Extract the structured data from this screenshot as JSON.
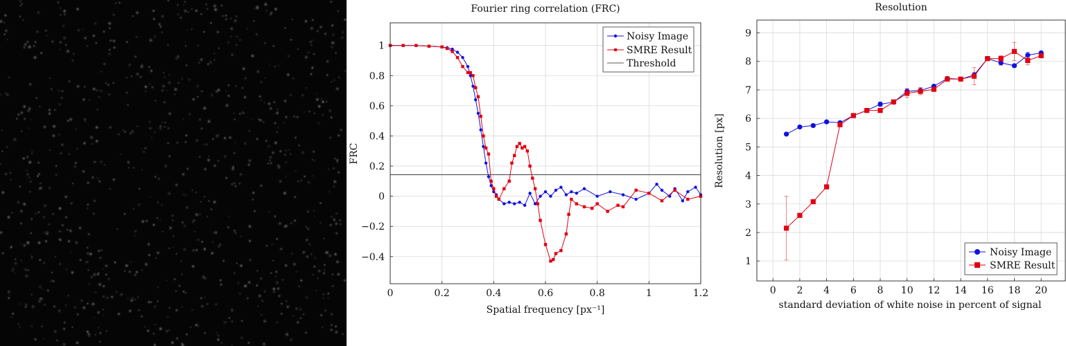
{
  "colors": {
    "blue": "#1010e0",
    "red": "#e00010",
    "threshold": "#222222",
    "grid": "#d9d9d9",
    "panel_bg": "#050505"
  },
  "chart_data": [
    {
      "type": "line",
      "title": "Fourier ring correlation (FRC)",
      "xlabel": "Spatial frequency [px⁻¹]",
      "ylabel": "FRC",
      "xlim": [
        0,
        1.2
      ],
      "ylim": [
        -0.58,
        1.15
      ],
      "xticks": [
        0,
        0.2,
        0.4,
        0.6,
        0.8,
        1,
        1.2
      ],
      "yticks": [
        -0.4,
        -0.2,
        0,
        0.2,
        0.4,
        0.6,
        0.8,
        1
      ],
      "xtick_labels": [
        "0",
        "0.2",
        "0.4",
        "0.6",
        "0.8",
        "1",
        "1.2"
      ],
      "ytick_labels": [
        "−0.4",
        "−0.2",
        "0",
        "0.2",
        "0.4",
        "0.6",
        "0.8",
        "1"
      ],
      "grid": true,
      "legend_position": "top-right",
      "threshold": {
        "name": "Threshold",
        "value": 0.143
      },
      "series": [
        {
          "name": "Noisy Image",
          "color": "blue",
          "marker": "circle",
          "x": [
            0,
            0.05,
            0.1,
            0.15,
            0.2,
            0.22,
            0.24,
            0.26,
            0.28,
            0.3,
            0.31,
            0.32,
            0.33,
            0.34,
            0.35,
            0.36,
            0.37,
            0.38,
            0.39,
            0.4,
            0.41,
            0.42,
            0.44,
            0.46,
            0.48,
            0.5,
            0.52,
            0.54,
            0.56,
            0.58,
            0.6,
            0.62,
            0.64,
            0.66,
            0.68,
            0.7,
            0.72,
            0.75,
            0.8,
            0.85,
            0.9,
            0.95,
            1.0,
            1.03,
            1.05,
            1.08,
            1.1,
            1.13,
            1.15,
            1.18,
            1.2
          ],
          "y": [
            1.0,
            1.0,
            1.0,
            0.995,
            0.99,
            0.985,
            0.975,
            0.955,
            0.92,
            0.86,
            0.8,
            0.73,
            0.64,
            0.55,
            0.44,
            0.33,
            0.22,
            0.13,
            0.07,
            0.03,
            0.01,
            -0.02,
            -0.05,
            -0.04,
            -0.05,
            -0.04,
            -0.06,
            0.02,
            -0.05,
            0.0,
            0.03,
            0.0,
            0.04,
            0.06,
            0.01,
            0.03,
            0.02,
            0.05,
            0.0,
            0.03,
            0.01,
            -0.02,
            0.02,
            0.08,
            0.04,
            0.0,
            0.05,
            -0.03,
            0.03,
            0.06,
            0.01
          ]
        },
        {
          "name": "SMRE Result",
          "color": "red",
          "marker": "square",
          "x": [
            0,
            0.05,
            0.1,
            0.15,
            0.2,
            0.22,
            0.24,
            0.26,
            0.28,
            0.3,
            0.31,
            0.32,
            0.33,
            0.34,
            0.35,
            0.36,
            0.37,
            0.38,
            0.39,
            0.4,
            0.41,
            0.42,
            0.44,
            0.46,
            0.47,
            0.48,
            0.49,
            0.5,
            0.51,
            0.52,
            0.53,
            0.54,
            0.55,
            0.56,
            0.57,
            0.58,
            0.6,
            0.62,
            0.63,
            0.64,
            0.66,
            0.68,
            0.69,
            0.7,
            0.72,
            0.75,
            0.78,
            0.8,
            0.84,
            0.88,
            0.9,
            0.95,
            1.0,
            1.05,
            1.1,
            1.15,
            1.2
          ],
          "y": [
            1.0,
            1.0,
            1.0,
            0.995,
            0.99,
            0.98,
            0.96,
            0.92,
            0.86,
            0.82,
            0.82,
            0.8,
            0.72,
            0.66,
            0.53,
            0.4,
            0.32,
            0.28,
            0.1,
            0.05,
            0.0,
            -0.02,
            0.05,
            0.1,
            0.22,
            0.27,
            0.33,
            0.35,
            0.32,
            0.33,
            0.3,
            0.2,
            0.12,
            0.05,
            -0.05,
            -0.16,
            -0.32,
            -0.43,
            -0.42,
            -0.38,
            -0.36,
            -0.25,
            -0.12,
            -0.02,
            -0.05,
            -0.07,
            -0.08,
            -0.05,
            -0.1,
            -0.06,
            -0.07,
            0.04,
            0.02,
            -0.03,
            0.04,
            -0.02,
            0.0
          ]
        }
      ]
    },
    {
      "type": "line",
      "title": "Resolution",
      "xlabel": "standard deviation of white noise in percent of signal",
      "ylabel": "Resolution [px]",
      "xlim": [
        -1.2,
        21.8
      ],
      "ylim": [
        0.3,
        9.45
      ],
      "xticks": [
        0,
        2,
        4,
        6,
        8,
        10,
        12,
        14,
        16,
        18,
        20
      ],
      "yticks": [
        1,
        2,
        3,
        4,
        5,
        6,
        7,
        8,
        9
      ],
      "xtick_labels": [
        "0",
        "2",
        "4",
        "6",
        "8",
        "10",
        "12",
        "14",
        "16",
        "18",
        "20"
      ],
      "ytick_labels": [
        "1",
        "2",
        "3",
        "4",
        "5",
        "6",
        "7",
        "8",
        "9"
      ],
      "grid": true,
      "legend_position": "bottom-right",
      "series": [
        {
          "name": "Noisy Image",
          "color": "blue",
          "marker": "circle",
          "x": [
            1,
            2,
            3,
            4,
            5,
            6,
            7,
            8,
            9,
            10,
            11,
            12,
            13,
            14,
            15,
            16,
            17,
            18,
            19,
            20
          ],
          "y": [
            5.45,
            5.7,
            5.75,
            5.88,
            5.85,
            6.1,
            6.28,
            6.5,
            6.57,
            6.95,
            6.98,
            7.13,
            7.4,
            7.38,
            7.52,
            8.1,
            7.95,
            7.85,
            8.22,
            8.3
          ],
          "err": [
            0.05,
            0.05,
            0.05,
            0.05,
            0.05,
            0.05,
            0.05,
            0.08,
            0.05,
            0.1,
            0.1,
            0.05,
            0.05,
            0.05,
            0.1,
            0.05,
            0.08,
            0.05,
            0.1,
            0.05
          ]
        },
        {
          "name": "SMRE Result",
          "color": "red",
          "marker": "square",
          "x": [
            1,
            2,
            3,
            4,
            5,
            6,
            7,
            8,
            9,
            10,
            11,
            12,
            13,
            14,
            15,
            16,
            17,
            18,
            19,
            20
          ],
          "y": [
            2.15,
            2.6,
            3.08,
            3.6,
            5.78,
            6.1,
            6.28,
            6.28,
            6.58,
            6.88,
            6.95,
            7.02,
            7.38,
            7.38,
            7.48,
            8.1,
            8.1,
            8.35,
            8.03,
            8.2
          ],
          "err": [
            1.12,
            0.05,
            0.05,
            0.05,
            0.05,
            0.05,
            0.05,
            0.05,
            0.05,
            0.15,
            0.12,
            0.05,
            0.05,
            0.05,
            0.3,
            0.05,
            0.1,
            0.32,
            0.15,
            0.05
          ]
        }
      ]
    }
  ]
}
